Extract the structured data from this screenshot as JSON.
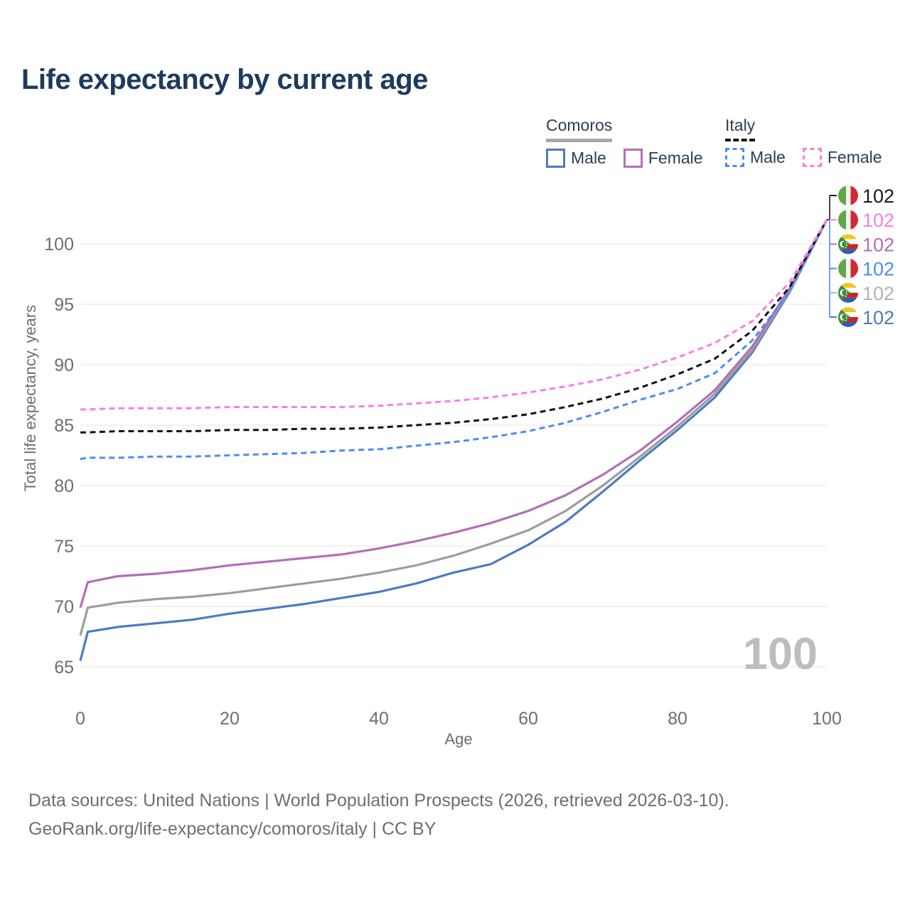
{
  "title": "Life expectancy by current age",
  "legend": {
    "groups": [
      {
        "label": "Comoros",
        "underline": "solid",
        "underline_color": "#a9a9a9",
        "items": [
          {
            "label": "Male",
            "color": "#4d7ac2"
          },
          {
            "label": "Female",
            "color": "#b26fb9"
          }
        ]
      },
      {
        "label": "Italy",
        "underline": "dashed",
        "underline_color": "#161616",
        "items": [
          {
            "label": "Male",
            "color": "#4b8cf5"
          },
          {
            "label": "Female",
            "color": "#fb7ee0"
          }
        ]
      }
    ]
  },
  "chart_data": {
    "type": "line",
    "title": "Life expectancy by current age",
    "xlabel": "Age",
    "ylabel": "Total life expectancy, years",
    "xlim": [
      0,
      100
    ],
    "ylim": [
      63,
      103
    ],
    "x_ticks": [
      0,
      20,
      40,
      60,
      80,
      100
    ],
    "y_ticks": [
      65,
      70,
      75,
      80,
      85,
      90,
      95,
      100
    ],
    "grid": true,
    "grid_color": "#ebebeb",
    "age_indicator": "100",
    "ages": [
      0,
      1,
      5,
      10,
      15,
      20,
      25,
      30,
      35,
      40,
      45,
      50,
      55,
      60,
      65,
      70,
      75,
      80,
      85,
      90,
      95,
      100
    ],
    "series": [
      {
        "id": "comoros-male",
        "group": "Comoros",
        "name": "Male",
        "style": "solid",
        "color": "#4d7ac2",
        "values": [
          65.5,
          67.9,
          68.3,
          68.6,
          68.9,
          69.4,
          69.8,
          70.2,
          70.7,
          71.2,
          71.9,
          72.8,
          73.5,
          75.1,
          77.0,
          79.5,
          82.1,
          84.6,
          87.3,
          91.0,
          96.0,
          102
        ]
      },
      {
        "id": "comoros-all",
        "group": "Comoros",
        "name": "All",
        "style": "solid",
        "color": "#9d9d9d",
        "values": [
          67.6,
          69.9,
          70.3,
          70.6,
          70.8,
          71.1,
          71.5,
          71.9,
          72.3,
          72.8,
          73.4,
          74.2,
          75.2,
          76.3,
          77.9,
          80.0,
          82.4,
          84.9,
          87.6,
          91.2,
          96.1,
          102
        ]
      },
      {
        "id": "comoros-female",
        "group": "Comoros",
        "name": "Female",
        "style": "solid",
        "color": "#b26fb9",
        "values": [
          69.9,
          72.0,
          72.5,
          72.7,
          73.0,
          73.4,
          73.7,
          74.0,
          74.3,
          74.8,
          75.4,
          76.1,
          76.9,
          77.9,
          79.2,
          80.9,
          82.9,
          85.3,
          87.9,
          91.5,
          96.3,
          102
        ]
      },
      {
        "id": "italy-male",
        "group": "Italy",
        "name": "Male",
        "style": "dashed",
        "color": "#4b8cf5",
        "values": [
          82.2,
          82.3,
          82.3,
          82.4,
          82.4,
          82.5,
          82.6,
          82.7,
          82.9,
          83.0,
          83.3,
          83.6,
          84.0,
          84.5,
          85.2,
          86.1,
          87.1,
          88.0,
          89.3,
          92.0,
          96.0,
          102
        ]
      },
      {
        "id": "italy-all",
        "group": "Italy",
        "name": "All",
        "style": "dashed",
        "color": "#121212",
        "values": [
          84.4,
          84.4,
          84.5,
          84.5,
          84.5,
          84.6,
          84.6,
          84.7,
          84.7,
          84.8,
          85.0,
          85.2,
          85.5,
          85.9,
          86.5,
          87.2,
          88.1,
          89.2,
          90.5,
          92.8,
          96.4,
          102
        ]
      },
      {
        "id": "italy-female",
        "group": "Italy",
        "name": "Female",
        "style": "dashed",
        "color": "#fb7ee0",
        "values": [
          86.3,
          86.3,
          86.4,
          86.4,
          86.4,
          86.5,
          86.5,
          86.5,
          86.5,
          86.6,
          86.8,
          87.0,
          87.3,
          87.7,
          88.2,
          88.8,
          89.6,
          90.6,
          91.8,
          93.6,
          96.8,
          102
        ]
      }
    ],
    "end_labels": [
      {
        "value": "102",
        "series": "italy-all",
        "flag": "italy",
        "color": "#1a1a1a"
      },
      {
        "value": "102",
        "series": "italy-female",
        "flag": "italy",
        "color": "#fb7ee0"
      },
      {
        "value": "102",
        "series": "comoros-female",
        "flag": "comoros",
        "color": "#b26fb9"
      },
      {
        "value": "102",
        "series": "italy-male",
        "flag": "italy",
        "color": "#4b8cf5"
      },
      {
        "value": "102",
        "series": "comoros-all",
        "flag": "comoros",
        "color": "#b3b3b3"
      },
      {
        "value": "102",
        "series": "comoros-male",
        "flag": "comoros",
        "color": "#4d7ac2"
      }
    ]
  },
  "footer": {
    "line1": "Data sources: United Nations | World Population Prospects (2026, retrieved 2026-03-10).",
    "line2": "GeoRank.org/life-expectancy/comoros/italy | CC BY"
  }
}
